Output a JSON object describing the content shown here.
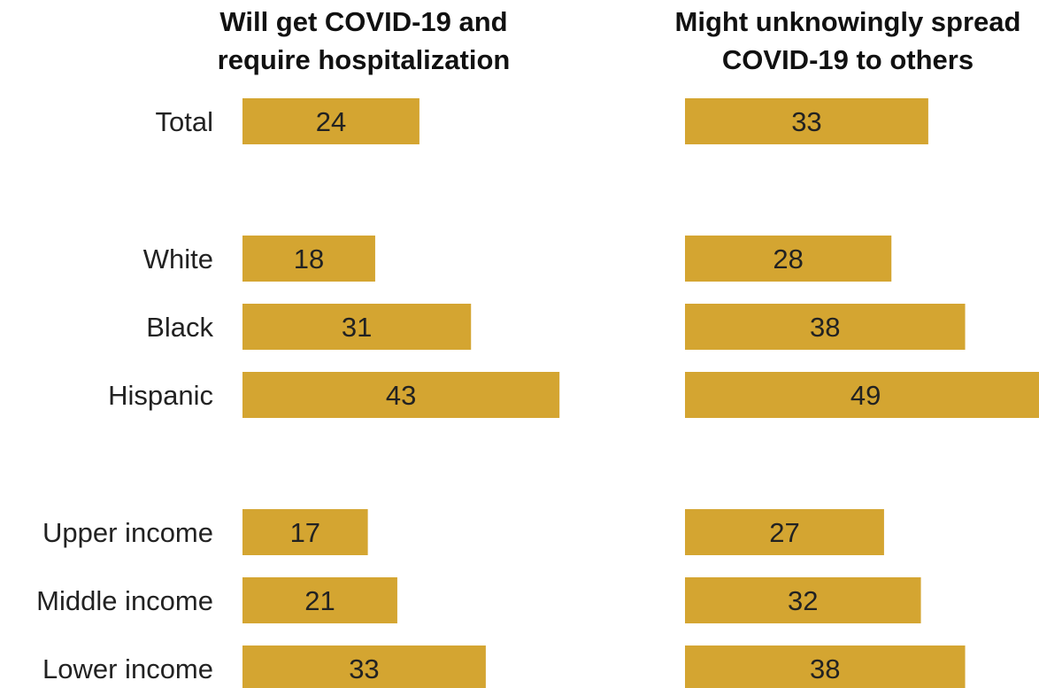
{
  "colors": {
    "bar": "#d4a531",
    "background": "#ffffff",
    "text": "#222222"
  },
  "chart_data": {
    "type": "bar",
    "orientation": "horizontal",
    "categories": [
      "Total",
      "White",
      "Black",
      "Hispanic",
      "Upper income",
      "Middle income",
      "Lower income"
    ],
    "panels": [
      {
        "title_lines": [
          "Will get COVID-19 and",
          "require hospitalization"
        ],
        "values": [
          24,
          18,
          31,
          43,
          17,
          21,
          33
        ]
      },
      {
        "title_lines": [
          "Might unknowingly spread",
          "COVID-19 to others"
        ],
        "values": [
          33,
          28,
          38,
          49,
          27,
          32,
          38
        ]
      }
    ],
    "grid": false,
    "legend": "none"
  }
}
